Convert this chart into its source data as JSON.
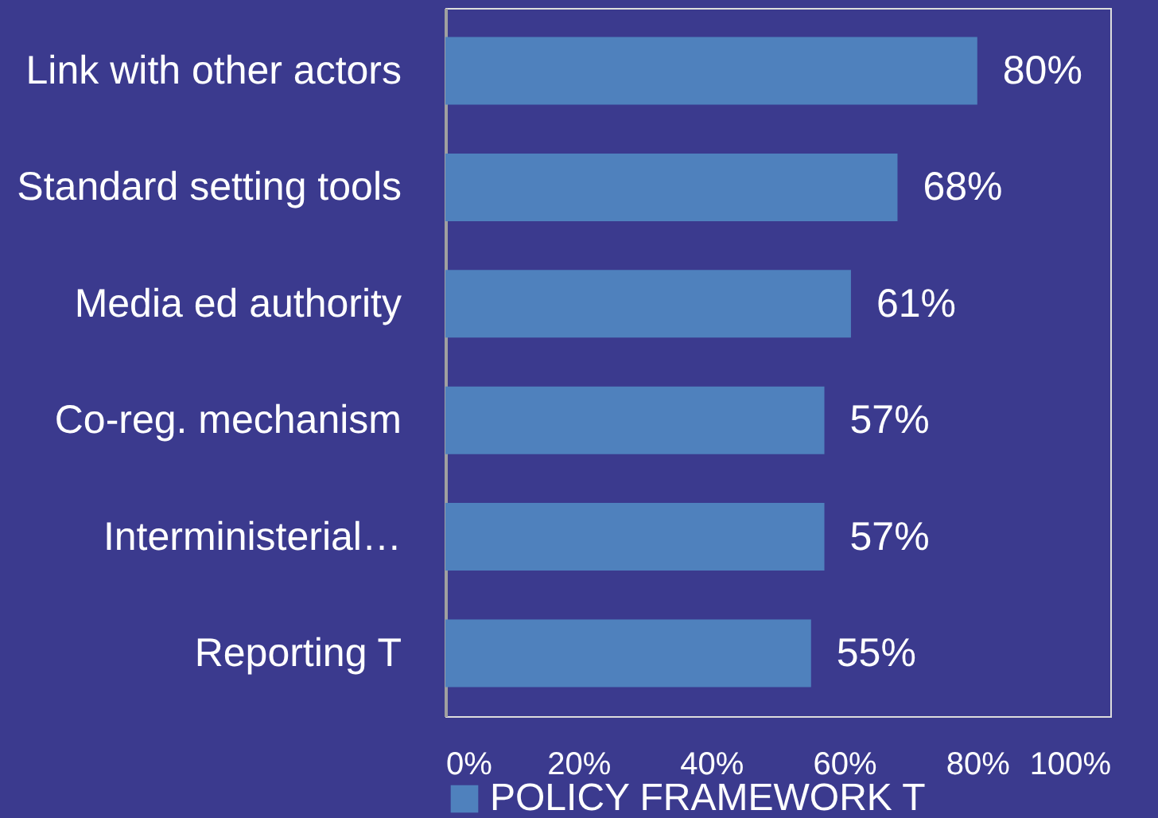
{
  "chart_data": {
    "type": "bar",
    "orientation": "horizontal",
    "categories": [
      "Link with other actors",
      "Standard setting tools",
      "Media ed authority",
      "Co-reg. mechanism",
      "Interministerial…",
      "Reporting T"
    ],
    "series": [
      {
        "name": "POLICY FRAMEWORK T",
        "color": "#4f81bd",
        "values": [
          80,
          68,
          61,
          57,
          57,
          55
        ],
        "value_labels": [
          "80%",
          "68%",
          "61%",
          "57%",
          "57%",
          "55%"
        ]
      }
    ],
    "xlim": [
      0,
      100
    ],
    "xticks": [
      {
        "value": 0,
        "label": "0%"
      },
      {
        "value": 20,
        "label": "20%"
      },
      {
        "value": 40,
        "label": "40%"
      },
      {
        "value": 60,
        "label": "60%"
      },
      {
        "value": 80,
        "label": "80%"
      },
      {
        "value": 100,
        "label": "100%"
      }
    ],
    "grid": false,
    "legend": "bottom"
  }
}
